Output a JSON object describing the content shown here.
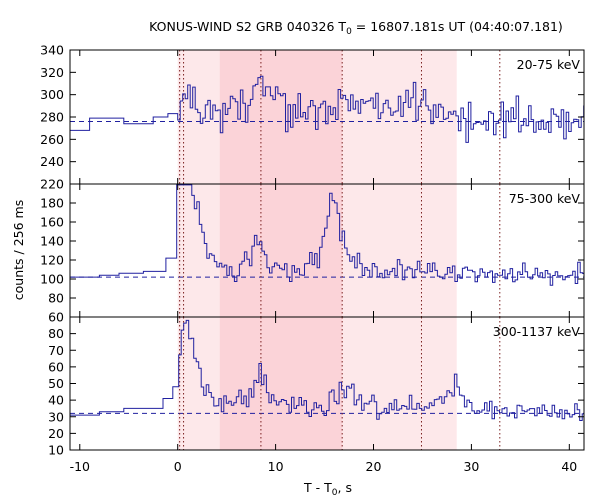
{
  "chart_data": {
    "type": "line",
    "title_main": "KONUS-WIND S2 GRB 040326 T",
    "title_sub": "0",
    "title_rest": " = 16807.181s UT (04:40:07.181)",
    "xlabel_main": "T - T",
    "xlabel_sub": "0",
    "xlabel_rest": ", s",
    "ylabel": "counts / 256 ms",
    "xlim": [
      -11,
      41.5
    ],
    "xticks": [
      -10,
      0,
      10,
      20,
      30,
      40
    ],
    "xtick_labels": [
      "-10",
      "0",
      "10",
      "20",
      "30",
      "40"
    ],
    "shaded_intervals": [
      {
        "from": 0,
        "to": 28.5,
        "color": "#fde8ea"
      },
      {
        "from": 4.3,
        "to": 16.8,
        "color": "#fbd3d8"
      }
    ],
    "vlines": [
      0.2,
      0.6,
      8.5,
      16.8,
      24.9,
      32.9
    ],
    "colors": {
      "line": "#2020a0",
      "dotted": "#7a1f1f",
      "background_line": "#2020a0"
    },
    "panels": [
      {
        "band": "20-75 keV",
        "ylim": [
          220,
          340
        ],
        "yticks": [
          220,
          240,
          260,
          280,
          300,
          320,
          340
        ],
        "ytick_labels": [
          "220",
          "240",
          "260",
          "280",
          "300",
          "320",
          "340"
        ],
        "background": 276,
        "pre": [
          [
            -11,
            -9,
            268
          ],
          [
            -9,
            -5.5,
            279
          ],
          [
            -5.5,
            -2.5,
            274
          ],
          [
            -2.5,
            -1,
            280
          ],
          [
            -1,
            0,
            283
          ]
        ],
        "peaks": [
          [
            0.4,
            20
          ],
          [
            8.3,
            25
          ],
          [
            16.4,
            12
          ],
          [
            23.6,
            18
          ]
        ],
        "base": 276,
        "amp": 18,
        "seed": 11,
        "decay": 2.0
      },
      {
        "band": "75-300 keV",
        "ylim": [
          60,
          200
        ],
        "yticks": [
          60,
          80,
          100,
          120,
          140,
          160,
          180
        ],
        "ytick_labels": [
          "60",
          "80",
          "100",
          "120",
          "140",
          "160",
          "180"
        ],
        "background": 102,
        "pre": [
          [
            -11,
            -8,
            102
          ],
          [
            -8,
            -6,
            104
          ],
          [
            -6,
            -3.5,
            106
          ],
          [
            -3.5,
            -1.2,
            108
          ],
          [
            -1.2,
            -0.1,
            122
          ]
        ],
        "peaks": [
          [
            0.2,
            85
          ],
          [
            0.8,
            70
          ],
          [
            1.4,
            40
          ],
          [
            8.0,
            35
          ],
          [
            15.6,
            48
          ],
          [
            16.0,
            40
          ]
        ],
        "base": 105,
        "amp": 11,
        "seed": 23,
        "decay": 1.0
      },
      {
        "band": "300-1137 keV",
        "ylim": [
          10,
          90
        ],
        "yticks": [
          10,
          20,
          30,
          40,
          50,
          60,
          70,
          80
        ],
        "ytick_labels": [
          "10",
          "20",
          "30",
          "40",
          "50",
          "60",
          "70",
          "80"
        ],
        "background": 32,
        "pre": [
          [
            -11,
            -8,
            31
          ],
          [
            -8,
            -5.5,
            33
          ],
          [
            -5.5,
            -1.5,
            35
          ],
          [
            -1.5,
            -0.5,
            41
          ],
          [
            -0.5,
            0.1,
            48
          ]
        ],
        "peaks": [
          [
            -0.3,
            14
          ],
          [
            0.4,
            28
          ],
          [
            1.1,
            40
          ],
          [
            8.3,
            18
          ],
          [
            16.7,
            12
          ],
          [
            28.3,
            14
          ]
        ],
        "base": 34,
        "amp": 7,
        "seed": 37,
        "decay": 1.0
      }
    ]
  }
}
